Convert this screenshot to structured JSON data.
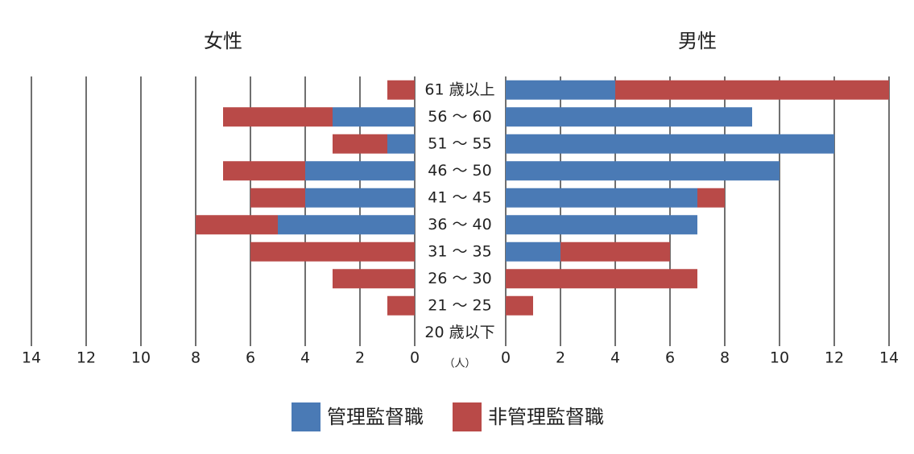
{
  "chart_data": {
    "type": "population-pyramid",
    "categories": [
      "61 歳以上",
      "56 ～ 60",
      "51 ～ 55",
      "46 ～ 50",
      "41 ～ 45",
      "36 ～ 40",
      "31 ～ 35",
      "26 ～ 30",
      "21 ～ 25",
      "20 歳以下"
    ],
    "unit": "（人）",
    "xlim": [
      0,
      14
    ],
    "xticks": [
      0,
      2,
      4,
      6,
      8,
      10,
      12,
      14
    ],
    "grid": true,
    "legend": "bottom",
    "panels": [
      {
        "title": "女性",
        "side": "left"
      },
      {
        "title": "男性",
        "side": "right"
      }
    ],
    "series": [
      {
        "name": "管理監督職",
        "color": "#4a7ab5",
        "values": [
          [
            0,
            3,
            1,
            4,
            4,
            5,
            0,
            0,
            0,
            0
          ],
          [
            4,
            9,
            12,
            10,
            7,
            7,
            2,
            0,
            0,
            0
          ]
        ]
      },
      {
        "name": "非管理監督職",
        "color": "#b94a48",
        "values": [
          [
            1,
            4,
            2,
            3,
            2,
            3,
            6,
            3,
            1,
            0
          ],
          [
            10,
            0,
            0,
            0,
            1,
            0,
            4,
            7,
            1,
            0
          ]
        ]
      }
    ]
  }
}
